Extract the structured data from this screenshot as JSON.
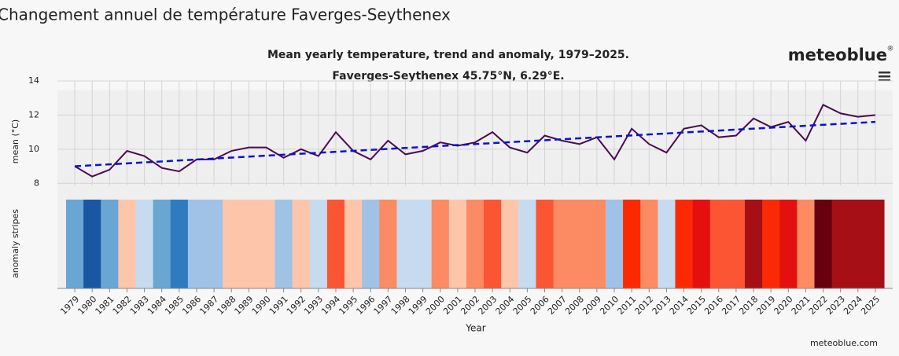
{
  "header": {
    "title": "Changement annuel de température Faverges-Seythenex"
  },
  "logo": "meteoblue",
  "logo_mark": "®",
  "footer": "meteoblue.com",
  "chart_data": {
    "type": "line",
    "title": "Mean yearly temperature, trend and anomaly, 1979–2025.",
    "subtitle": "Faverges-Seythenex 45.75°N, 6.29°E.",
    "y_label": "mean (°C)",
    "stripes_label": "anomaly stripes",
    "x_label": "Year",
    "x": [
      1979,
      1980,
      1981,
      1982,
      1983,
      1984,
      1985,
      1986,
      1987,
      1988,
      1989,
      1990,
      1991,
      1992,
      1993,
      1994,
      1995,
      1996,
      1997,
      1998,
      1999,
      2000,
      2001,
      2002,
      2003,
      2004,
      2005,
      2006,
      2007,
      2008,
      2009,
      2010,
      2011,
      2012,
      2013,
      2014,
      2015,
      2016,
      2017,
      2018,
      2019,
      2020,
      2021,
      2022,
      2023,
      2024,
      2025
    ],
    "series": [
      {
        "color": "#4b0a50",
        "values": [
          9.0,
          8.4,
          8.8,
          9.9,
          9.6,
          8.9,
          8.7,
          9.4,
          9.4,
          9.9,
          10.1,
          10.1,
          9.5,
          10.0,
          9.6,
          11.0,
          9.9,
          9.4,
          10.5,
          9.7,
          9.9,
          10.4,
          10.2,
          10.4,
          11.0,
          10.1,
          9.8,
          10.8,
          10.5,
          10.3,
          10.7,
          9.4,
          11.2,
          10.3,
          9.8,
          11.2,
          11.4,
          10.7,
          10.8,
          11.8,
          11.3,
          11.6,
          10.5,
          12.6,
          12.1,
          11.9,
          12.0
        ]
      },
      {
        "color": "#0a14c8",
        "dashed": true,
        "x": [
          1979,
          2025
        ],
        "values": [
          9.0,
          11.6
        ]
      }
    ],
    "stripe_colors": [
      "#6aa6d4",
      "#1a57a3",
      "#6aa6d4",
      "#fdc6aa",
      "#c6dbef",
      "#6aa6d4",
      "#2f7bc0",
      "#a0c2e6",
      "#a0c2e6",
      "#fdc6aa",
      "#fdc6aa",
      "#fdc6aa",
      "#a0c2e6",
      "#fdc6aa",
      "#c6dbef",
      "#fb5533",
      "#fdc6aa",
      "#a0c2e6",
      "#fc8a62",
      "#c6dbef",
      "#c6dbef",
      "#fc8a62",
      "#fdc6aa",
      "#fc8a62",
      "#fb5533",
      "#fdc6aa",
      "#c6dbef",
      "#fb5533",
      "#fc8a62",
      "#fc8a62",
      "#fc8a62",
      "#a0c2e6",
      "#fb2a00",
      "#fc8a62",
      "#c6dbef",
      "#fb2a05",
      "#e41010",
      "#fb5533",
      "#fb5533",
      "#a50f15",
      "#fb2a05",
      "#e41010",
      "#fc8a62",
      "#67000d",
      "#a50f15",
      "#a50f15",
      "#a50f15"
    ],
    "xlim": [
      1978.5,
      2025.5
    ],
    "ylim": [
      7,
      14
    ],
    "yticks": [
      8,
      10,
      12,
      14
    ],
    "grid": true
  }
}
